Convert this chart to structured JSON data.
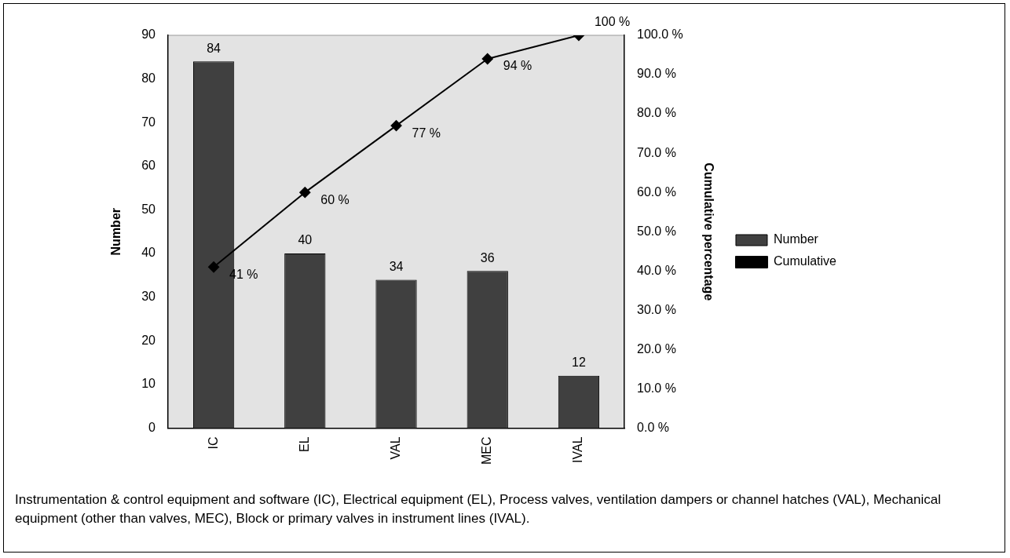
{
  "chart_data": {
    "type": "bar",
    "categories": [
      "IC",
      "EL",
      "VAL",
      "MEC",
      "IVAL"
    ],
    "series": [
      {
        "name": "Number",
        "color": "#404040",
        "values": [
          84,
          40,
          34,
          36,
          12
        ],
        "value_labels": [
          "84",
          "40",
          "34",
          "36",
          "12"
        ]
      },
      {
        "name": "Cumulative",
        "type": "line",
        "axis": "y2",
        "color": "#000000",
        "marker": "diamond",
        "values": [
          41,
          60,
          77,
          94,
          100
        ],
        "value_labels": [
          "41 %",
          "60 %",
          "77 %",
          "94 %",
          "100 %"
        ]
      }
    ],
    "ylabel": "Number",
    "y2label": "Cumulative percentage",
    "ylim": [
      0,
      90
    ],
    "yticks": [
      0,
      10,
      20,
      30,
      40,
      50,
      60,
      70,
      80,
      90
    ],
    "y2lim": [
      0,
      100
    ],
    "y2ticks": [
      {
        "value": 0,
        "label": "0.0 %"
      },
      {
        "value": 10,
        "label": "10.0 %"
      },
      {
        "value": 20,
        "label": "20.0 %"
      },
      {
        "value": 30,
        "label": "30.0 %"
      },
      {
        "value": 40,
        "label": "40.0 %"
      },
      {
        "value": 50,
        "label": "50.0 %"
      },
      {
        "value": 60,
        "label": "60.0 %"
      },
      {
        "value": 70,
        "label": "70.0 %"
      },
      {
        "value": 80,
        "label": "80.0 %"
      },
      {
        "value": 90,
        "label": "90.0 %"
      },
      {
        "value": 100,
        "label": "100.0 %"
      }
    ],
    "grid": false,
    "legend": "right",
    "annotations": [
      "Instrumentation & control equipment and software (IC), Electrical equipment (EL), Process valves, ventilation dampers or channel hatches (VAL), Mechanical equipment (other than valves, MEC), Block or primary valves in instrument lines (IVAL)."
    ]
  }
}
